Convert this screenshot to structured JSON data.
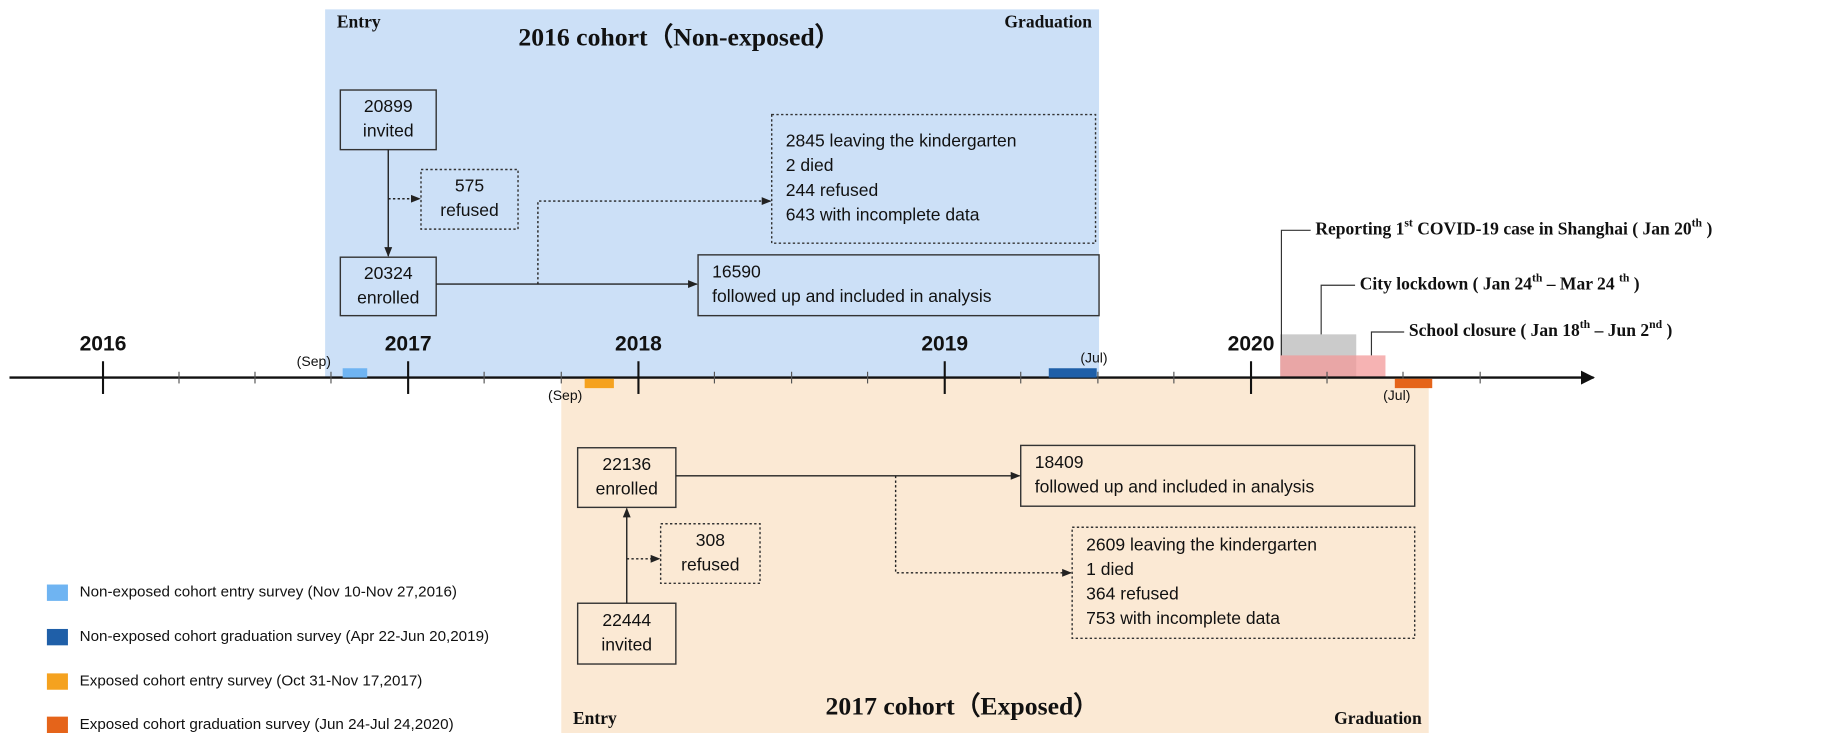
{
  "timeline": {
    "years": [
      "2016",
      "2017",
      "2018",
      "2019",
      "2020"
    ],
    "markers": [
      "(Sep)",
      "(Sep)",
      "(Jul)",
      "(Jul)"
    ]
  },
  "cohort_2016": {
    "entry": "Entry",
    "graduation": "Graduation",
    "title": "2016 cohort（Non-exposed）",
    "color": "#2e75b6",
    "background": "#cce0f7",
    "invited": [
      "20899",
      "invited"
    ],
    "refused": [
      "575",
      "refused"
    ],
    "enrolled": [
      "20324",
      "enrolled"
    ],
    "losses": [
      "2845 leaving the kindergarten",
      "2 died",
      "244 refused",
      "643 with incomplete data"
    ],
    "analyzed": [
      "16590",
      "followed up and included in analysis"
    ]
  },
  "cohort_2017": {
    "entry": "Entry",
    "graduation": "Graduation",
    "title": "2017 cohort（Exposed）",
    "color": "#e36c09",
    "background": "#fbe9d4",
    "invited": [
      "22444",
      "invited"
    ],
    "refused": [
      "308",
      "refused"
    ],
    "enrolled": [
      "22136",
      "enrolled"
    ],
    "losses": [
      "2609 leaving the kindergarten",
      "1 died",
      "364 refused",
      "753 with incomplete data"
    ],
    "analyzed": [
      "18409",
      "followed up and included in analysis"
    ]
  },
  "events": [
    {
      "parts": [
        "Reporting 1",
        "st",
        " COVID-19 case in Shanghai ( Jan 20",
        "th",
        " )"
      ]
    },
    {
      "parts": [
        "City lockdown ( Jan 24",
        "th",
        " – Mar 24 ",
        "th",
        " )"
      ]
    },
    {
      "parts": [
        "School closure ( Jan 18",
        "th",
        " – Jun 2",
        "nd",
        " )"
      ]
    }
  ],
  "legend": [
    {
      "label": "Non-exposed cohort entry survey (Nov 10-Nov 27,2016)",
      "color": "#6fb4f2"
    },
    {
      "label": "Non-exposed cohort graduation survey (Apr 22-Jun 20,2019)",
      "color": "#1f5fa8"
    },
    {
      "label": "Exposed cohort entry survey (Oct 31-Nov 17,2017)",
      "color": "#f5a21f"
    },
    {
      "label": "Exposed cohort graduation survey (Jun 24-Jul 24,2020)",
      "color": "#e5641a"
    }
  ]
}
